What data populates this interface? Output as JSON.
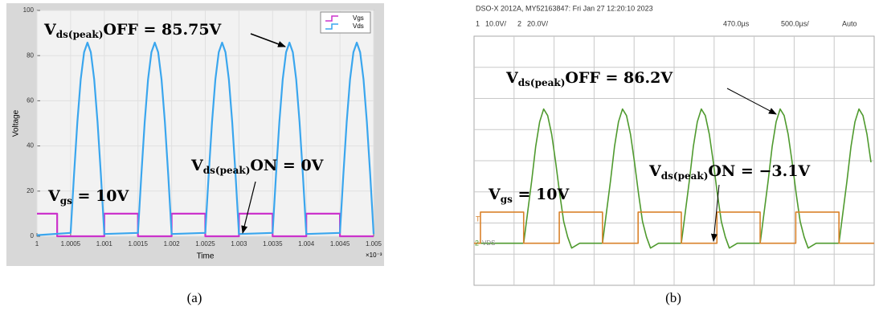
{
  "chart_data": [
    {
      "type": "line",
      "xlabel": "Time",
      "ylabel": "Voltage",
      "x_multiplier": "×10⁻³",
      "xlim": [
        1,
        1.005
      ],
      "ylim": [
        0,
        100
      ],
      "xticks": [
        1,
        1.0005,
        1.001,
        1.0015,
        1.002,
        1.0025,
        1.003,
        1.0035,
        1.004,
        1.0045,
        1.005
      ],
      "yticks": [
        0,
        20,
        40,
        60,
        80,
        100
      ],
      "grid": true,
      "legend": "upper right",
      "series": [
        {
          "name": "Vgs",
          "color": "#cc33cc",
          "x": [
            1,
            1.0003,
            1.0003,
            1.001,
            1.001,
            1.0015,
            1.0015,
            1.002,
            1.002,
            1.0025,
            1.0025,
            1.003,
            1.003,
            1.0035,
            1.0035,
            1.004,
            1.004,
            1.0045,
            1.0045,
            1.005
          ],
          "values": [
            10,
            10,
            0,
            0,
            10,
            10,
            0,
            0,
            10,
            10,
            0,
            0,
            10,
            10,
            0,
            0,
            10,
            10,
            0,
            0
          ]
        },
        {
          "name": "Vds",
          "color": "#3aa6ee",
          "x": [
            1,
            1.0005,
            1.00055,
            1.0006,
            1.00065,
            1.0007,
            1.00075,
            1.0008,
            1.00085,
            1.0009,
            1.00095,
            1.001,
            1.0015,
            1.00155,
            1.0016,
            1.00165,
            1.0017,
            1.00175,
            1.0018,
            1.00185,
            1.0019,
            1.00195,
            1.002,
            1.0025,
            1.00255,
            1.0026,
            1.00265,
            1.0027,
            1.00275,
            1.0028,
            1.00285,
            1.0029,
            1.00295,
            1.003,
            1.0035,
            1.00355,
            1.0036,
            1.00365,
            1.0037,
            1.00375,
            1.0038,
            1.00385,
            1.0039,
            1.00395,
            1.004,
            1.0045,
            1.00455,
            1.0046,
            1.00465,
            1.0047,
            1.00475,
            1.0048,
            1.00485,
            1.0049,
            1.00495,
            1.005
          ],
          "values": [
            0.5,
            1.5,
            27,
            50.5,
            69.5,
            81.5,
            85.75,
            81.5,
            69.5,
            50.5,
            27,
            1,
            1.5,
            27,
            50.5,
            69.5,
            81.5,
            85.75,
            81.5,
            69.5,
            50.5,
            27,
            1,
            1.5,
            27,
            50.5,
            69.5,
            81.5,
            85.75,
            81.5,
            69.5,
            50.5,
            27,
            1,
            1.5,
            27,
            50.5,
            69.5,
            81.5,
            85.75,
            81.5,
            69.5,
            50.5,
            27,
            1,
            1.5,
            27,
            50.5,
            69.5,
            81.5,
            85.75,
            81.5,
            69.5,
            50.5,
            27,
            1
          ]
        }
      ],
      "annotations": [
        {
          "main": "V",
          "sub": "ds(peak)",
          "rest": "OFF = 85.75V"
        },
        {
          "main": "V",
          "sub": "ds(peak)",
          "rest": "ON = 0V"
        },
        {
          "main": "V",
          "sub": "gs",
          "rest": " = 10V"
        }
      ],
      "caption": "(a)"
    },
    {
      "type": "scope",
      "header": "DSO-X 2012A, MY52163847: Fri Jan 27 12:20:10 2023",
      "status": [
        "1",
        "10.0V/",
        "2",
        "20.0V/",
        "470.0µs",
        "500.0µs/",
        "Auto"
      ],
      "markers": [
        "T",
        "2",
        "VDS"
      ],
      "xlim": [
        0,
        5000
      ],
      "ylim": [
        -27,
        133
      ],
      "y2lim": [
        -13.5,
        66.5
      ],
      "series": [
        {
          "color": "#4f9a2e",
          "x": [
            0,
            620,
            670,
            720,
            770,
            820,
            870,
            920,
            970,
            1020,
            1070,
            1120,
            1170,
            1220,
            1320,
            1605,
            1655,
            1705,
            1755,
            1805,
            1855,
            1905,
            1955,
            2005,
            2055,
            2105,
            2155,
            2205,
            2305,
            2590,
            2640,
            2690,
            2740,
            2790,
            2840,
            2890,
            2940,
            2990,
            3040,
            3090,
            3140,
            3190,
            3290,
            3575,
            3625,
            3675,
            3725,
            3775,
            3825,
            3875,
            3925,
            3975,
            4025,
            4075,
            4125,
            4175,
            4275,
            4560,
            4610,
            4660,
            4710,
            4760,
            4810,
            4860,
            4910,
            4960
          ],
          "values": [
            0,
            0,
            20,
            40,
            62,
            78,
            86.2,
            82,
            70,
            52,
            32,
            14,
            4,
            -3.1,
            0,
            0,
            20,
            40,
            62,
            78,
            86.2,
            82,
            70,
            52,
            32,
            14,
            4,
            -3.1,
            0,
            0,
            20,
            40,
            62,
            78,
            86.2,
            82,
            70,
            52,
            32,
            14,
            4,
            -3.1,
            0,
            0,
            20,
            40,
            62,
            78,
            86.2,
            82,
            70,
            52,
            32,
            14,
            4,
            -3.1,
            0,
            0,
            20,
            40,
            62,
            78,
            86.2,
            82,
            70,
            52
          ]
        },
        {
          "color": "#d9822b",
          "axis": "y2",
          "x": [
            0,
            80,
            80,
            620,
            620,
            1065,
            1065,
            1605,
            1605,
            2050,
            2050,
            2590,
            2590,
            3035,
            3035,
            3575,
            3575,
            4020,
            4020,
            4560,
            4560,
            5000
          ],
          "values": [
            0,
            0,
            10,
            10,
            0,
            0,
            10,
            10,
            0,
            0,
            10,
            10,
            0,
            0,
            10,
            10,
            0,
            0,
            10,
            10,
            0,
            0
          ]
        }
      ],
      "annotations": [
        {
          "main": "V",
          "sub": "ds(peak)",
          "rest": "OFF = 86.2V"
        },
        {
          "main": "V",
          "sub": "ds(peak)",
          "rest": "ON = −3.1V"
        },
        {
          "main": "V",
          "sub": "gs",
          "rest": " = 10V"
        }
      ],
      "caption": "(b)"
    }
  ]
}
